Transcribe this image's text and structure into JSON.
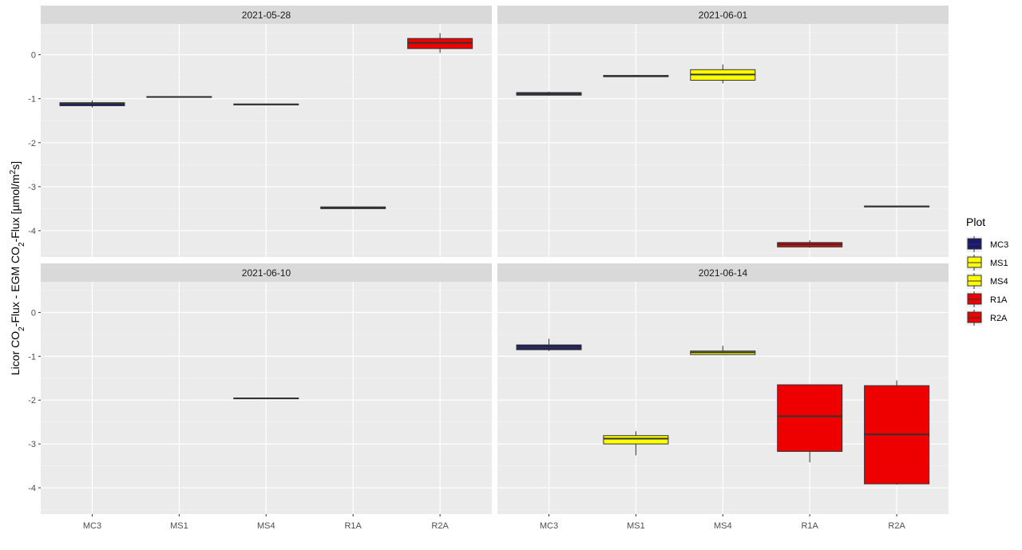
{
  "chart_data": {
    "type": "boxplot",
    "ylabel_parts": [
      "Licor CO",
      "2",
      "-Flux - EGM CO",
      "2",
      "-Flux [µmol/m",
      "2",
      "s]"
    ],
    "categories": [
      "MC3",
      "MS1",
      "MS4",
      "R1A",
      "R2A"
    ],
    "ylim": [
      -4.6,
      0.7
    ],
    "y_ticks": [
      0,
      -1,
      -2,
      -3,
      -4
    ],
    "legend": {
      "title": "Plot",
      "items": [
        {
          "name": "MC3",
          "color": "#191970"
        },
        {
          "name": "MS1",
          "color": "#FFFF00"
        },
        {
          "name": "MS4",
          "color": "#FFFF00"
        },
        {
          "name": "R1A",
          "color": "#EE0000"
        },
        {
          "name": "R2A",
          "color": "#EE0000"
        }
      ]
    },
    "panels": [
      {
        "title": "2021-05-28",
        "boxes": [
          {
            "category": "MC3",
            "min": -1.2,
            "q1": -1.16,
            "median": -1.11,
            "q3": -1.09,
            "max": -1.04
          },
          {
            "category": "MS1",
            "min": -0.97,
            "q1": -0.97,
            "median": -0.96,
            "q3": -0.95,
            "max": -0.95
          },
          {
            "category": "MS4",
            "min": -1.14,
            "q1": -1.14,
            "median": -1.13,
            "q3": -1.12,
            "max": -1.12
          },
          {
            "category": "R1A",
            "min": -3.51,
            "q1": -3.5,
            "median": -3.48,
            "q3": -3.46,
            "max": -3.45
          },
          {
            "category": "R2A",
            "min": 0.04,
            "q1": 0.14,
            "median": 0.27,
            "q3": 0.37,
            "max": 0.49
          }
        ]
      },
      {
        "title": "2021-06-01",
        "boxes": [
          {
            "category": "MC3",
            "min": -0.93,
            "q1": -0.92,
            "median": -0.89,
            "q3": -0.86,
            "max": -0.84
          },
          {
            "category": "MS1",
            "min": -0.5,
            "q1": -0.5,
            "median": -0.48,
            "q3": -0.47,
            "max": -0.46
          },
          {
            "category": "MS4",
            "min": -0.65,
            "q1": -0.58,
            "median": -0.45,
            "q3": -0.34,
            "max": -0.22
          },
          {
            "category": "R1A",
            "min": -4.39,
            "q1": -4.37,
            "median": -4.31,
            "q3": -4.27,
            "max": -4.22
          },
          {
            "category": "R2A",
            "min": -3.46,
            "q1": -3.46,
            "median": -3.45,
            "q3": -3.44,
            "max": -3.44
          }
        ]
      },
      {
        "title": "2021-06-10",
        "boxes": [
          {
            "category": "MS4",
            "min": -1.97,
            "q1": -1.97,
            "median": -1.96,
            "q3": -1.95,
            "max": -1.95
          }
        ]
      },
      {
        "title": "2021-06-14",
        "boxes": [
          {
            "category": "MC3",
            "min": -0.88,
            "q1": -0.85,
            "median": -0.8,
            "q3": -0.74,
            "max": -0.6
          },
          {
            "category": "MS1",
            "min": -3.26,
            "q1": -3.0,
            "median": -2.88,
            "q3": -2.81,
            "max": -2.71
          },
          {
            "category": "MS4",
            "min": -0.97,
            "q1": -0.96,
            "median": -0.91,
            "q3": -0.88,
            "max": -0.76
          },
          {
            "category": "R1A",
            "min": -3.42,
            "q1": -3.17,
            "median": -2.37,
            "q3": -1.65,
            "max": -1.65
          },
          {
            "category": "R2A",
            "min": -3.93,
            "q1": -3.91,
            "median": -2.78,
            "q3": -1.67,
            "max": -1.55
          }
        ]
      }
    ]
  }
}
